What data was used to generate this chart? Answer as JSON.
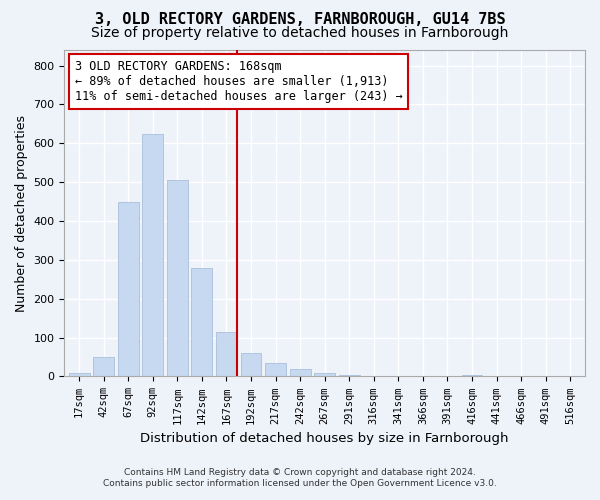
{
  "title1": "3, OLD RECTORY GARDENS, FARNBOROUGH, GU14 7BS",
  "title2": "Size of property relative to detached houses in Farnborough",
  "xlabel": "Distribution of detached houses by size in Farnborough",
  "ylabel": "Number of detached properties",
  "footnote1": "Contains HM Land Registry data © Crown copyright and database right 2024.",
  "footnote2": "Contains public sector information licensed under the Open Government Licence v3.0.",
  "bar_labels": [
    "17sqm",
    "42sqm",
    "67sqm",
    "92sqm",
    "117sqm",
    "142sqm",
    "167sqm",
    "192sqm",
    "217sqm",
    "242sqm",
    "267sqm",
    "291sqm",
    "316sqm",
    "341sqm",
    "366sqm",
    "391sqm",
    "416sqm",
    "441sqm",
    "466sqm",
    "491sqm",
    "516sqm"
  ],
  "bar_values": [
    10,
    50,
    450,
    625,
    505,
    280,
    115,
    60,
    35,
    20,
    10,
    5,
    0,
    0,
    0,
    0,
    3,
    0,
    0,
    0,
    0
  ],
  "bar_color": "#c6d9f0",
  "bar_edge_color": "#a0b8d8",
  "property_label": "3 OLD RECTORY GARDENS: 168sqm",
  "pct_smaller": "89% of detached houses are smaller (1,913)",
  "pct_larger": "11% of semi-detached houses are larger (243)",
  "vline_color": "#cc0000",
  "ylim": [
    0,
    840
  ],
  "yticks": [
    0,
    100,
    200,
    300,
    400,
    500,
    600,
    700,
    800
  ],
  "background_color": "#eef2f9",
  "plot_bg_color": "#eef2f9",
  "grid_color": "#ffffff",
  "title1_fontsize": 11,
  "title2_fontsize": 10,
  "annotation_fontsize": 8.5,
  "xlabel_fontsize": 9.5,
  "ylabel_fontsize": 9
}
